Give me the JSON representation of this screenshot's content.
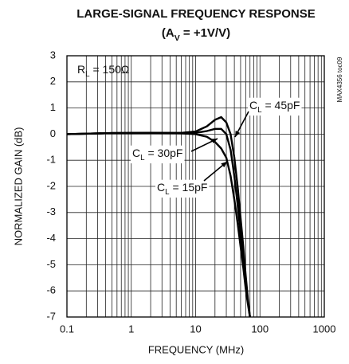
{
  "chart_data": {
    "type": "line",
    "title": "LARGE-SIGNAL FREQUENCY RESPONSE",
    "subtitle_parts": [
      "(A",
      "V",
      " = +1V/V)"
    ],
    "x_label": "FREQUENCY (MHz)",
    "y_label": "NORMALIZED GAIN (dB)",
    "side_note": "MAX4356 toc09",
    "condition_parts": [
      "R",
      "L",
      " = 150Ω"
    ],
    "log_x": true,
    "grid": true,
    "minor_grid": true,
    "xlim": [
      0.1,
      1000
    ],
    "xticks": [
      0.1,
      1,
      10,
      100,
      1000
    ],
    "ylim": [
      -7,
      3
    ],
    "yticks": [
      -7,
      -6,
      -5,
      -4,
      -3,
      -2,
      -1,
      0,
      1,
      2,
      3
    ],
    "series": [
      {
        "color": "#000000",
        "x": [
          0.1,
          0.5,
          2,
          6,
          10,
          15,
          20,
          25,
          30,
          35,
          40,
          45,
          50,
          55,
          60,
          65,
          70
        ],
        "values": [
          0,
          0.04,
          0.05,
          0.03,
          0,
          -0.1,
          -0.3,
          -0.55,
          -0.9,
          -1.6,
          -2.5,
          -3.4,
          -4.3,
          -5.1,
          -5.9,
          -6.5,
          -7
        ]
      },
      {
        "color": "#000000",
        "x": [
          0.1,
          0.5,
          2,
          6,
          10,
          15,
          20,
          25,
          30,
          35,
          40,
          45,
          50,
          55,
          60,
          65,
          70
        ],
        "values": [
          0,
          0.04,
          0.05,
          0.04,
          0.05,
          0.12,
          0.2,
          0.2,
          0,
          -0.6,
          -1.6,
          -2.7,
          -3.8,
          -4.8,
          -5.7,
          -6.4,
          -7
        ]
      },
      {
        "color": "#000000",
        "x": [
          0.1,
          0.5,
          2,
          6,
          10,
          15,
          20,
          25,
          30,
          35,
          40,
          45,
          50,
          55,
          60,
          65,
          70
        ],
        "values": [
          0,
          0.04,
          0.05,
          0.05,
          0.1,
          0.3,
          0.55,
          0.65,
          0.45,
          0,
          -0.9,
          -2,
          -3.2,
          -4.3,
          -5.4,
          -6.3,
          -7
        ]
      }
    ],
    "annotations": [
      {
        "parts": [
          "C",
          "L",
          " = 45pF"
        ]
      },
      {
        "parts": [
          "C",
          "L",
          " = 30pF"
        ]
      },
      {
        "parts": [
          "C",
          "L",
          " = 15pF"
        ]
      }
    ]
  }
}
